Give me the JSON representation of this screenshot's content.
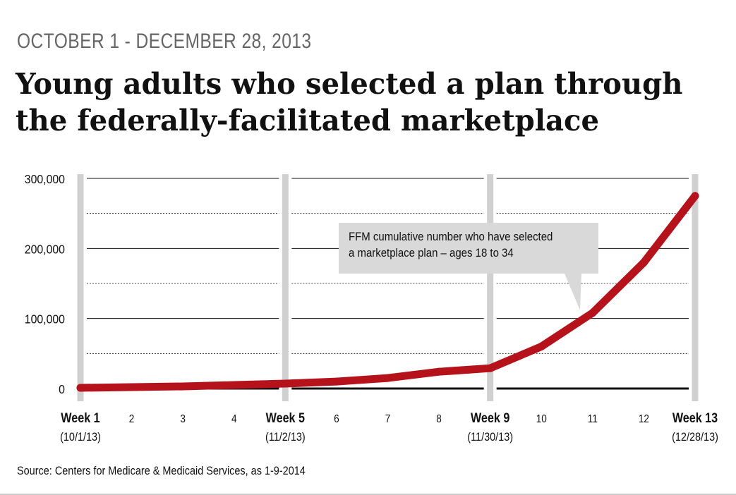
{
  "header": {
    "eyebrow": "OCTOBER 1 - DECEMBER 28, 2013",
    "title_line1": "Young adults who selected a plan through",
    "title_line2": "the federally-facilitated marketplace"
  },
  "callout": {
    "text": "FFM cumulative number who have selected\na marketplace plan – ages 18 to 34",
    "color": "#d9d9d9"
  },
  "source": "Source: Centers for  Medicare & Medicaid Services, as 1-9-2014",
  "colors": {
    "line": "#b5121b",
    "divider": "#d0d0d0",
    "grid": "#111111"
  },
  "chart_data": {
    "type": "line",
    "title": "Young adults who selected a plan through the federally-facilitated marketplace",
    "xlabel": "",
    "ylabel": "",
    "ylim": [
      0,
      300000
    ],
    "yticks": [
      0,
      100000,
      200000,
      300000
    ],
    "ytick_labels": [
      "0",
      "100,000",
      "200,000",
      "300,000"
    ],
    "minor_gridlines": [
      50000,
      150000,
      250000
    ],
    "x": [
      1,
      2,
      3,
      4,
      5,
      6,
      7,
      8,
      9,
      10,
      11,
      12,
      13
    ],
    "xtick_labels": [
      "Week 1",
      "2",
      "3",
      "4",
      "Week 5",
      "6",
      "7",
      "8",
      "Week 9",
      "10",
      "11",
      "12",
      "Week 13"
    ],
    "xtick_sublabels": [
      "(10/1/13)",
      "",
      "",
      "",
      "(11/2/13)",
      "",
      "",
      "",
      "(11/30/13)",
      "",
      "",
      "",
      "(12/28/13)"
    ],
    "bold_weeks": [
      1,
      5,
      9,
      13
    ],
    "series": [
      {
        "name": "FFM cumulative number who have selected a marketplace plan – ages 18 to 34",
        "values": [
          1000,
          2000,
          3000,
          5000,
          7000,
          10000,
          15000,
          24000,
          29000,
          60000,
          108000,
          180000,
          275000
        ]
      }
    ]
  }
}
